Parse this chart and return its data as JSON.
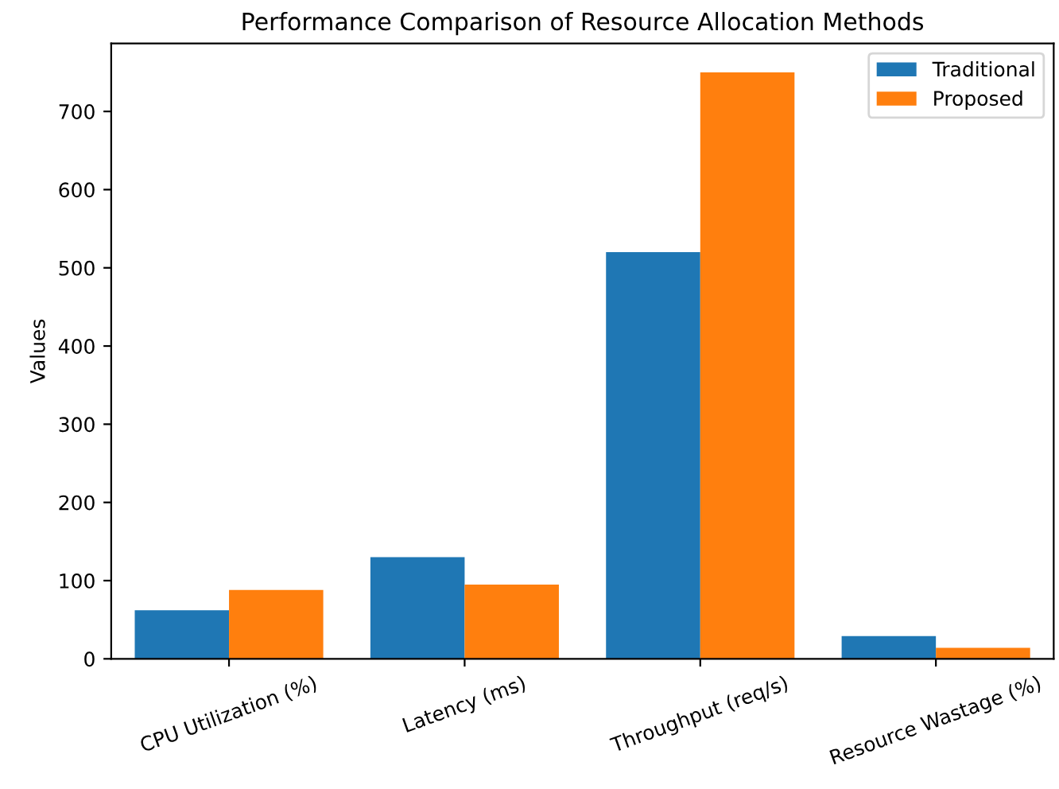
{
  "chart_data": {
    "type": "bar",
    "title": "Performance Comparison of Resource Allocation Methods",
    "ylabel": "Values",
    "categories": [
      "CPU Utilization (%)",
      "Latency (ms)",
      "Throughput (req/s)",
      "Resource Wastage (%)"
    ],
    "series": [
      {
        "name": "Traditional",
        "color": "#1f77b4",
        "values": [
          62,
          130,
          520,
          29
        ]
      },
      {
        "name": "Proposed",
        "color": "#ff7f0e",
        "values": [
          88,
          95,
          750,
          14
        ]
      }
    ],
    "ylim": [
      0,
      787
    ],
    "yticks": [
      0,
      100,
      200,
      300,
      400,
      500,
      600,
      700
    ],
    "legend": "top right",
    "grid": false
  }
}
